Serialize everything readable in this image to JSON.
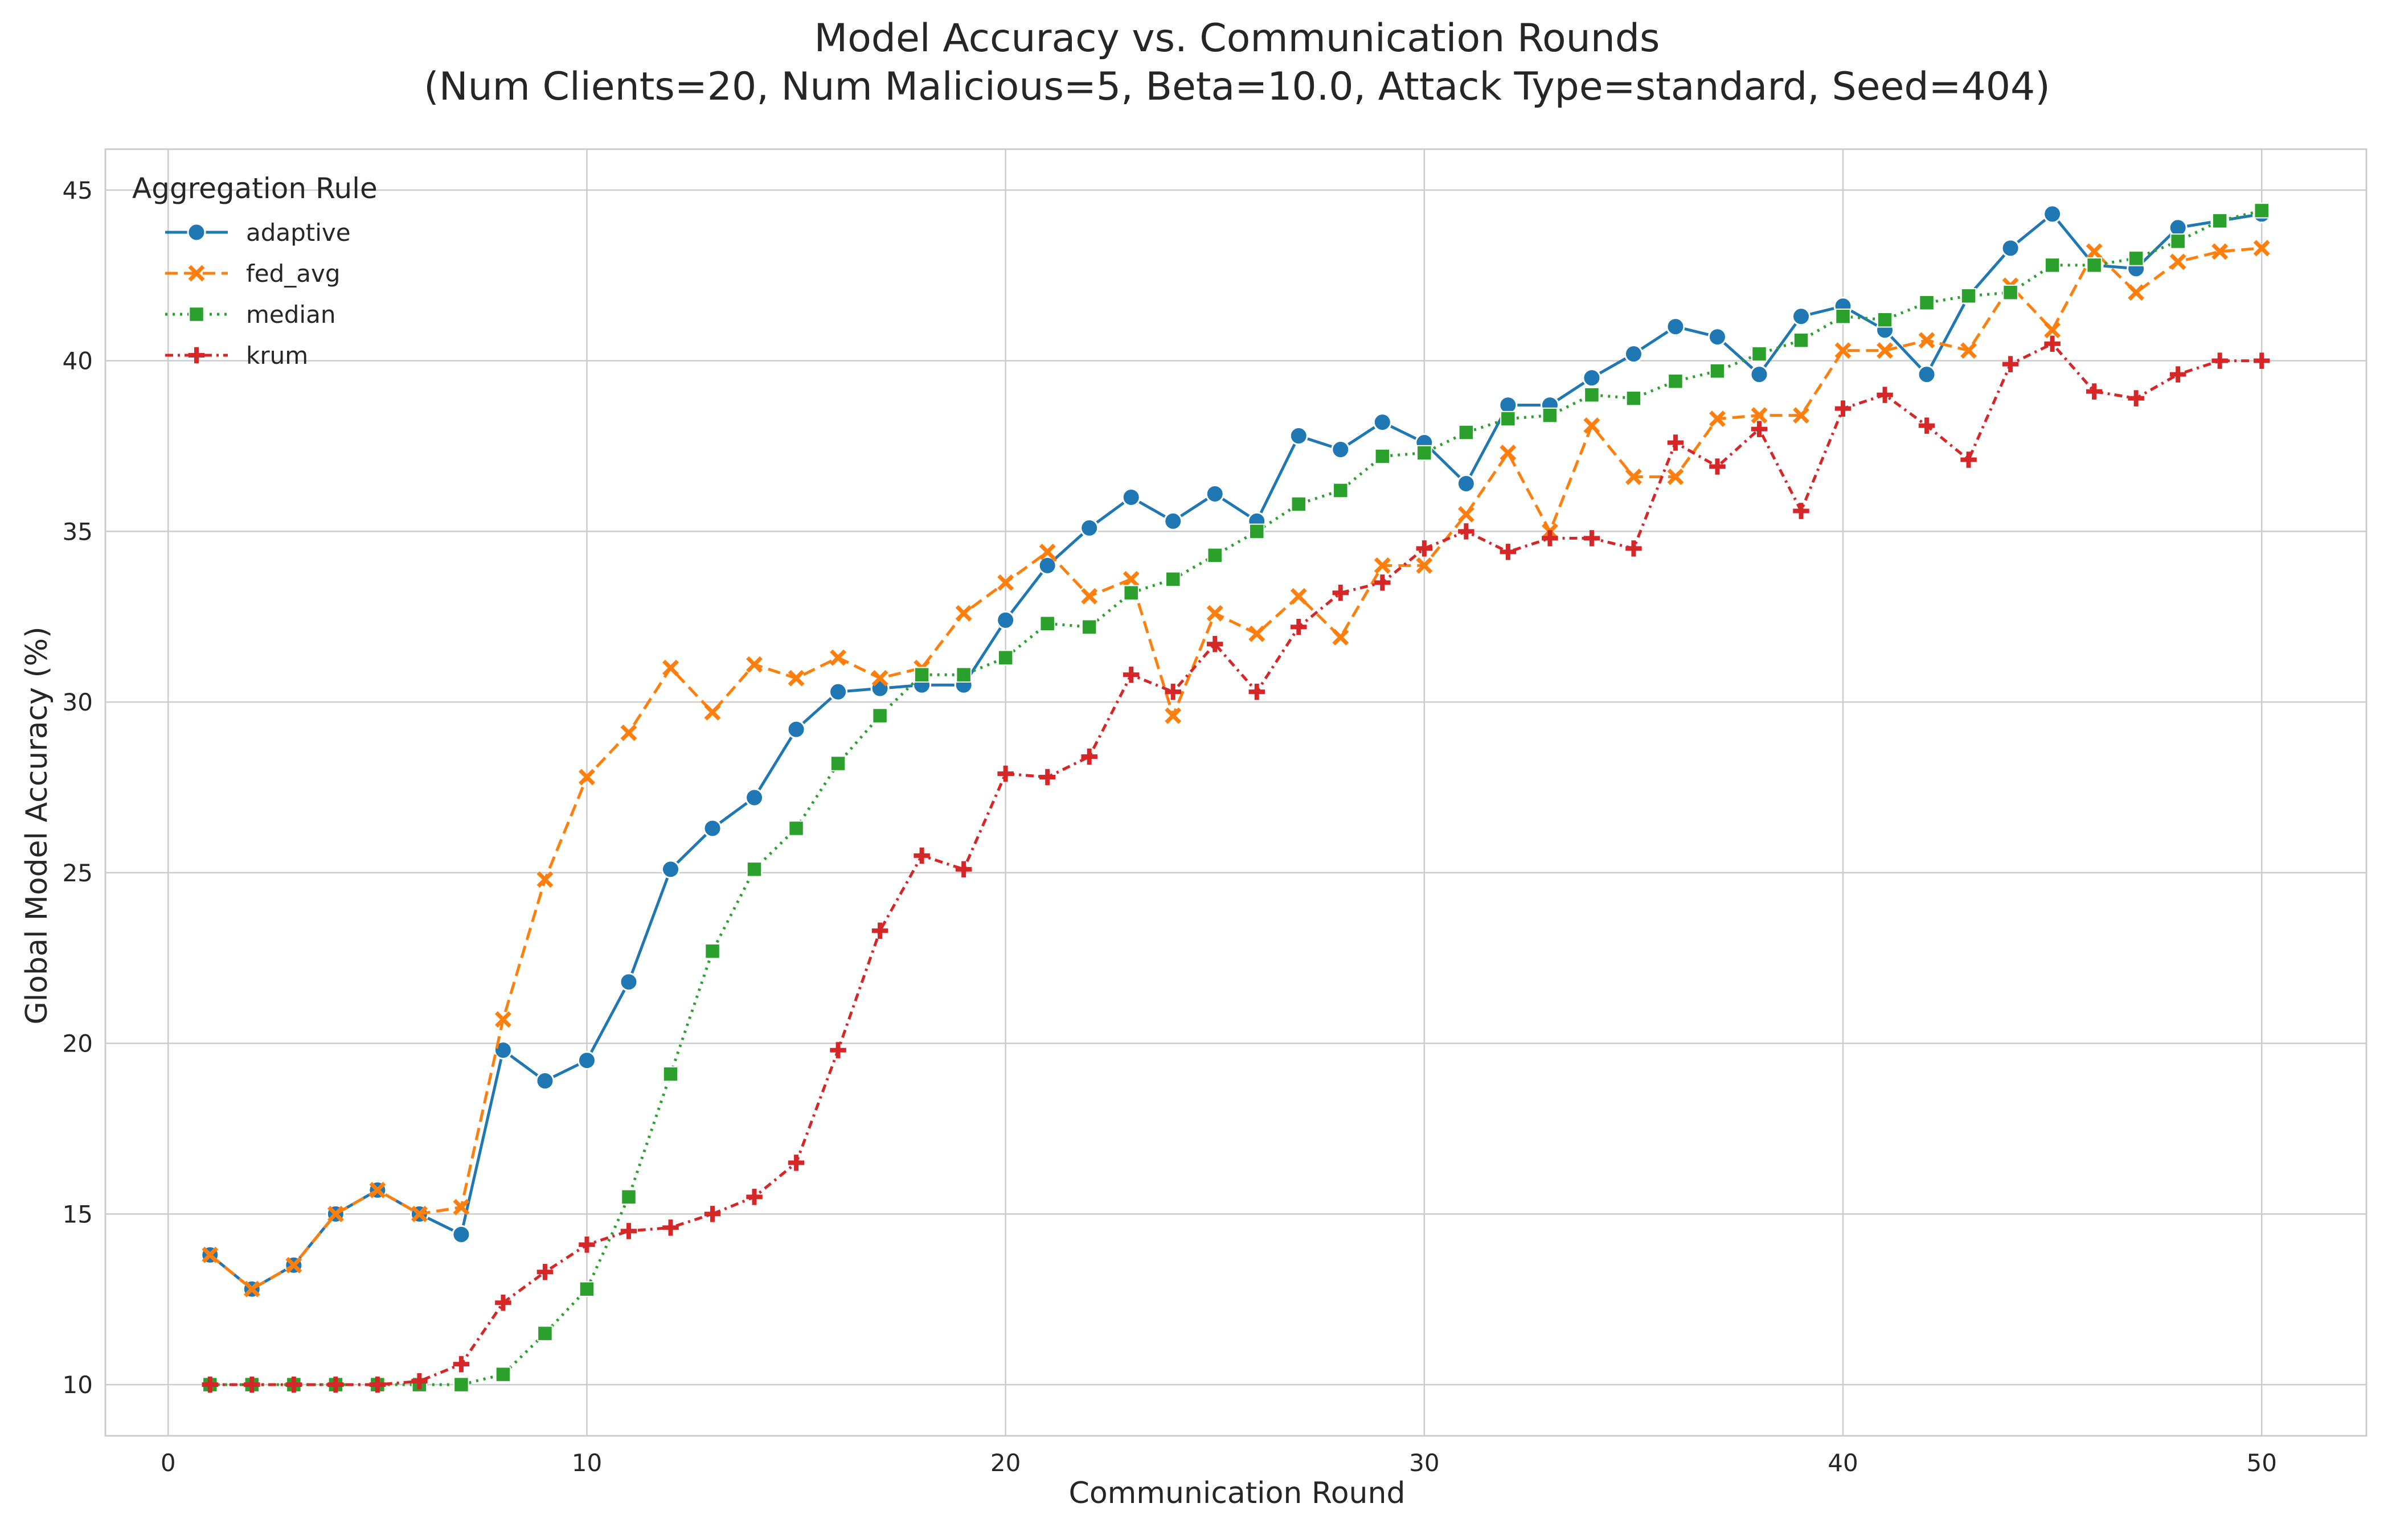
{
  "chart_data": {
    "type": "line",
    "title": "Model Accuracy vs. Communication Rounds",
    "subtitle": "(Num Clients=20, Num Malicious=5, Beta=10.0, Attack Type=standard, Seed=404)",
    "xlabel": "Communication Round",
    "ylabel": "Global Model Accuracy (%)",
    "xlim": [
      -1.5,
      52.5
    ],
    "ylim": [
      8.5,
      46.2
    ],
    "xticks": [
      0,
      10,
      20,
      30,
      40,
      50
    ],
    "yticks": [
      10,
      15,
      20,
      25,
      30,
      35,
      40,
      45
    ],
    "grid": true,
    "legend": {
      "title": "Aggregation Rule",
      "placement": "top-left"
    },
    "x": [
      1,
      2,
      3,
      4,
      5,
      6,
      7,
      8,
      9,
      10,
      11,
      12,
      13,
      14,
      15,
      16,
      17,
      18,
      19,
      20,
      21,
      22,
      23,
      24,
      25,
      26,
      27,
      28,
      29,
      30,
      31,
      32,
      33,
      34,
      35,
      36,
      37,
      38,
      39,
      40,
      41,
      42,
      43,
      44,
      45,
      46,
      47,
      48,
      49,
      50
    ],
    "series": [
      {
        "name": "adaptive",
        "color": "#1f77b4",
        "marker": "circle",
        "dash": "solid",
        "values": [
          13.8,
          12.8,
          13.5,
          15.0,
          15.7,
          15.0,
          14.4,
          19.8,
          18.9,
          19.5,
          21.8,
          25.1,
          26.3,
          27.2,
          29.2,
          30.3,
          30.4,
          30.5,
          30.5,
          32.4,
          34.0,
          35.1,
          36.0,
          35.3,
          36.1,
          35.3,
          37.8,
          37.4,
          38.2,
          37.6,
          36.4,
          38.7,
          38.7,
          39.5,
          40.2,
          41.0,
          40.7,
          39.6,
          41.3,
          41.6,
          40.9,
          39.6,
          41.9,
          43.3,
          44.3,
          42.8,
          42.7,
          43.9,
          44.1,
          44.3
        ]
      },
      {
        "name": "fed_avg",
        "color": "#ff7f0e",
        "marker": "x",
        "dash": "dashed",
        "values": [
          13.8,
          12.8,
          13.5,
          15.0,
          15.7,
          15.0,
          15.2,
          20.7,
          24.8,
          27.8,
          29.1,
          31.0,
          29.7,
          31.1,
          30.7,
          31.3,
          30.7,
          31.0,
          32.6,
          33.5,
          34.4,
          33.1,
          33.6,
          29.6,
          32.6,
          32.0,
          33.1,
          31.9,
          34.0,
          34.0,
          35.5,
          37.3,
          35.0,
          38.1,
          36.6,
          36.6,
          38.3,
          38.4,
          38.4,
          40.3,
          40.3,
          40.6,
          40.3,
          42.2,
          40.9,
          43.2,
          42.0,
          42.9,
          43.2,
          43.3
        ]
      },
      {
        "name": "median",
        "color": "#2ca02c",
        "marker": "square",
        "dash": "dotted",
        "values": [
          10.0,
          10.0,
          10.0,
          10.0,
          10.0,
          10.0,
          10.0,
          10.3,
          11.5,
          12.8,
          15.5,
          19.1,
          22.7,
          25.1,
          26.3,
          28.2,
          29.6,
          30.8,
          30.8,
          31.3,
          32.3,
          32.2,
          33.2,
          33.6,
          34.3,
          35.0,
          35.8,
          36.2,
          37.2,
          37.3,
          37.9,
          38.3,
          38.4,
          39.0,
          38.9,
          39.4,
          39.7,
          40.2,
          40.6,
          41.3,
          41.2,
          41.7,
          41.9,
          42.0,
          42.8,
          42.8,
          43.0,
          43.5,
          44.1,
          44.4
        ]
      },
      {
        "name": "krum",
        "color": "#d62728",
        "marker": "plus",
        "dash": "dashdot",
        "values": [
          10.0,
          10.0,
          10.0,
          10.0,
          10.0,
          10.1,
          10.6,
          12.4,
          13.3,
          14.1,
          14.5,
          14.6,
          15.0,
          15.5,
          16.5,
          19.8,
          23.3,
          25.5,
          25.1,
          27.9,
          27.8,
          28.4,
          30.8,
          30.3,
          31.7,
          30.3,
          32.2,
          33.2,
          33.5,
          34.5,
          35.0,
          34.4,
          34.8,
          34.8,
          34.5,
          37.6,
          36.9,
          38.0,
          35.6,
          38.6,
          39.0,
          38.1,
          37.1,
          39.9,
          40.5,
          39.1,
          38.9,
          39.6,
          40.0,
          40.0
        ]
      }
    ]
  }
}
